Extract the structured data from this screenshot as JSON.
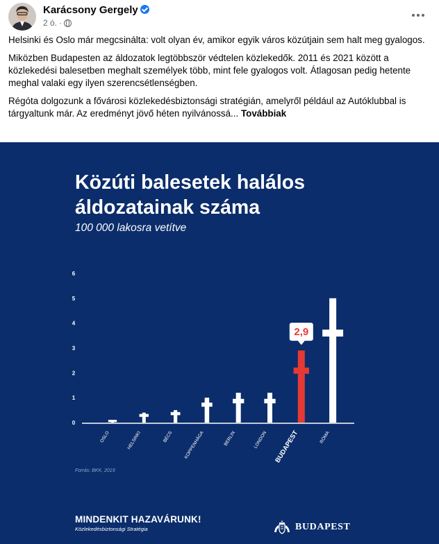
{
  "post": {
    "author": "Karácsony Gergely",
    "time": "2 ó.",
    "dot": "·",
    "paragraphs": [
      "Helsinki és Oslo már megcsinálta: volt olyan év, amikor egyik város közútjain sem halt meg gyalogos.",
      "Miközben Budapesten az áldozatok legtöbbször védtelen közlekedők. 2011 és 2021 között a közlekedési balesetben meghalt személyek több, mint fele gyalogos volt. Átlagosan pedig hetente meghal valaki egy ilyen szerencsétlenségben.",
      "Régóta dolgozunk a fővárosi közlekedésbiztonsági stratégián, amelyről például az Autóklubbal is tárgyaltunk már. Az eredményt jövő héten nyilvánossá..."
    ],
    "see_more": "Továbbiak"
  },
  "graphic": {
    "title_line1": "Közúti balesetek halálos",
    "title_line2": "áldozatainak száma",
    "subtitle": "100 000 lakosra vetítve",
    "source": "Forrás: BKK, 2019",
    "slogan": "MINDENKIT HAZAVÁRUNK!",
    "strategy": "Közlekedésbiztonsági Stratégia",
    "city_logo": "BUDAPEST"
  },
  "colors": {
    "background": "#0b2d6b",
    "cross": "#ffffff",
    "highlight": "#e53935",
    "axis_text": "#ffffff"
  },
  "icons": [
    "verified-badge-icon",
    "globe-icon",
    "more-options-icon",
    "cross-icon",
    "budapest-crest-icon"
  ],
  "chart_data": {
    "type": "bar",
    "mark": "cross",
    "categories": [
      "OSLO",
      "HELSINKI",
      "BÉCS",
      "KOPPENHÁGA",
      "BERLIN",
      "LONDON",
      "BUDAPEST",
      "RÓMA"
    ],
    "values": [
      0.1,
      0.4,
      0.5,
      1.0,
      1.2,
      1.2,
      2.9,
      5.0
    ],
    "highlight": "BUDAPEST",
    "highlight_label": "2,9",
    "yticks": [
      "0",
      "1",
      "2",
      "3",
      "4",
      "5",
      "6"
    ],
    "ylim": [
      0,
      6
    ],
    "title": "Közúti balesetek halálos áldozatainak száma",
    "subtitle": "100 000 lakosra vetítve",
    "grid": false,
    "legend": "none"
  }
}
